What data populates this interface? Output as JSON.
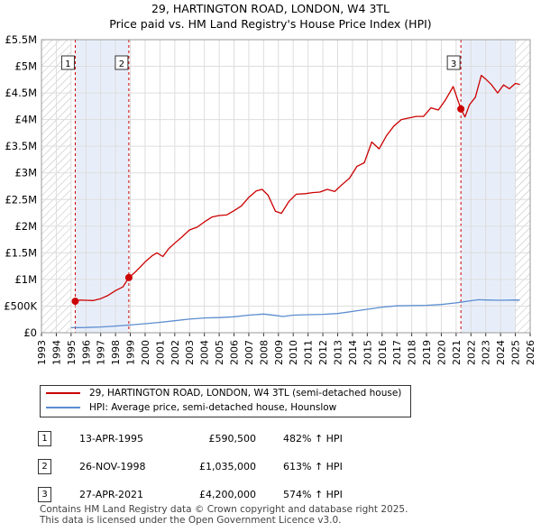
{
  "title_line1": "29, HARTINGTON ROAD, LONDON, W4 3TL",
  "title_line2": "Price paid vs. HM Land Registry's House Price Index (HPI)",
  "colors": {
    "property": "#cc0000",
    "hpi": "#5b8dd0",
    "sale_band": "#e8eef9",
    "hatch": "#bbbbbb",
    "grid": "#dddddd"
  },
  "chart_data": {
    "type": "line",
    "title": "Price paid vs. HM Land Registry's House Price Index (HPI)",
    "xlabel": "",
    "ylabel": "",
    "xlim": [
      1993,
      2026
    ],
    "ylim": [
      0,
      5500000
    ],
    "y_ticks": [
      {
        "value": 0,
        "label": "£0"
      },
      {
        "value": 500000,
        "label": "£500K"
      },
      {
        "value": 1000000,
        "label": "£1M"
      },
      {
        "value": 1500000,
        "label": "£1.5M"
      },
      {
        "value": 2000000,
        "label": "£2M"
      },
      {
        "value": 2500000,
        "label": "£2.5M"
      },
      {
        "value": 3000000,
        "label": "£3M"
      },
      {
        "value": 3500000,
        "label": "£3.5M"
      },
      {
        "value": 4000000,
        "label": "£4M"
      },
      {
        "value": 4500000,
        "label": "£4.5M"
      },
      {
        "value": 5000000,
        "label": "£5M"
      },
      {
        "value": 5500000,
        "label": "£5.5M"
      }
    ],
    "x_ticks": [
      "1993",
      "1994",
      "1995",
      "1996",
      "1997",
      "1998",
      "1999",
      "2000",
      "2001",
      "2002",
      "2003",
      "2004",
      "2005",
      "2006",
      "2007",
      "2008",
      "2009",
      "2010",
      "2011",
      "2012",
      "2013",
      "2014",
      "2015",
      "2016",
      "2017",
      "2018",
      "2019",
      "2020",
      "2021",
      "2022",
      "2023",
      "2024",
      "2025",
      "2026"
    ],
    "series": [
      {
        "name": "29, HARTINGTON ROAD, LONDON, W4 3TL (semi-detached house)",
        "points": [
          [
            1995.28,
            590500
          ],
          [
            1995.6,
            612000
          ],
          [
            1996.0,
            610000
          ],
          [
            1996.5,
            605000
          ],
          [
            1997.0,
            640000
          ],
          [
            1997.5,
            700000
          ],
          [
            1998.0,
            790000
          ],
          [
            1998.5,
            860000
          ],
          [
            1998.9,
            1035000
          ],
          [
            1999.3,
            1130000
          ],
          [
            1999.7,
            1240000
          ],
          [
            2000.0,
            1330000
          ],
          [
            2000.5,
            1450000
          ],
          [
            2000.8,
            1500000
          ],
          [
            2001.2,
            1430000
          ],
          [
            2001.6,
            1580000
          ],
          [
            2002.0,
            1680000
          ],
          [
            2002.5,
            1800000
          ],
          [
            2003.0,
            1930000
          ],
          [
            2003.5,
            1980000
          ],
          [
            2004.0,
            2080000
          ],
          [
            2004.5,
            2170000
          ],
          [
            2005.0,
            2200000
          ],
          [
            2005.5,
            2210000
          ],
          [
            2006.0,
            2290000
          ],
          [
            2006.5,
            2380000
          ],
          [
            2007.0,
            2540000
          ],
          [
            2007.5,
            2660000
          ],
          [
            2007.9,
            2690000
          ],
          [
            2008.3,
            2580000
          ],
          [
            2008.8,
            2280000
          ],
          [
            2009.2,
            2240000
          ],
          [
            2009.7,
            2460000
          ],
          [
            2010.2,
            2600000
          ],
          [
            2010.8,
            2610000
          ],
          [
            2011.3,
            2630000
          ],
          [
            2011.8,
            2640000
          ],
          [
            2012.3,
            2690000
          ],
          [
            2012.8,
            2650000
          ],
          [
            2013.3,
            2780000
          ],
          [
            2013.8,
            2900000
          ],
          [
            2014.3,
            3120000
          ],
          [
            2014.8,
            3190000
          ],
          [
            2015.3,
            3580000
          ],
          [
            2015.8,
            3450000
          ],
          [
            2016.3,
            3700000
          ],
          [
            2016.8,
            3880000
          ],
          [
            2017.3,
            4000000
          ],
          [
            2017.8,
            4030000
          ],
          [
            2018.3,
            4060000
          ],
          [
            2018.8,
            4060000
          ],
          [
            2019.3,
            4220000
          ],
          [
            2019.8,
            4180000
          ],
          [
            2020.3,
            4380000
          ],
          [
            2020.8,
            4620000
          ],
          [
            2021.32,
            4200000
          ],
          [
            2021.6,
            4050000
          ],
          [
            2021.9,
            4280000
          ],
          [
            2022.3,
            4420000
          ],
          [
            2022.7,
            4830000
          ],
          [
            2023.0,
            4760000
          ],
          [
            2023.4,
            4650000
          ],
          [
            2023.8,
            4500000
          ],
          [
            2024.2,
            4650000
          ],
          [
            2024.6,
            4580000
          ],
          [
            2025.0,
            4680000
          ],
          [
            2025.3,
            4660000
          ]
        ]
      },
      {
        "name": "HPI: Average price, semi-detached house, Hounslow",
        "points": [
          [
            1995.0,
            95000
          ],
          [
            1996.0,
            98000
          ],
          [
            1997.0,
            108000
          ],
          [
            1998.0,
            125000
          ],
          [
            1999.0,
            145000
          ],
          [
            2000.0,
            170000
          ],
          [
            2001.0,
            195000
          ],
          [
            2002.0,
            225000
          ],
          [
            2003.0,
            255000
          ],
          [
            2004.0,
            278000
          ],
          [
            2005.0,
            285000
          ],
          [
            2006.0,
            300000
          ],
          [
            2007.0,
            330000
          ],
          [
            2008.0,
            350000
          ],
          [
            2008.8,
            325000
          ],
          [
            2009.3,
            305000
          ],
          [
            2010.0,
            330000
          ],
          [
            2011.0,
            338000
          ],
          [
            2012.0,
            345000
          ],
          [
            2013.0,
            360000
          ],
          [
            2014.0,
            400000
          ],
          [
            2015.0,
            440000
          ],
          [
            2016.0,
            480000
          ],
          [
            2017.0,
            505000
          ],
          [
            2018.0,
            510000
          ],
          [
            2019.0,
            515000
          ],
          [
            2020.0,
            530000
          ],
          [
            2021.0,
            560000
          ],
          [
            2022.0,
            600000
          ],
          [
            2022.5,
            620000
          ],
          [
            2023.0,
            615000
          ],
          [
            2024.0,
            610000
          ],
          [
            2025.0,
            615000
          ],
          [
            2025.3,
            612000
          ]
        ]
      }
    ],
    "sales": [
      {
        "num": "1",
        "x": 1995.28,
        "price": 590500
      },
      {
        "num": "2",
        "x": 1998.9,
        "price": 1035000
      },
      {
        "num": "3",
        "x": 2021.32,
        "price": 4200000
      }
    ],
    "hatch_ranges": [
      [
        1993,
        1995.0
      ],
      [
        2025.0,
        2026
      ]
    ],
    "shade_ranges": [
      [
        1995.28,
        1998.9
      ],
      [
        2021.32,
        2025.0
      ]
    ]
  },
  "legend": {
    "property": "29, HARTINGTON ROAD, LONDON, W4 3TL (semi-detached house)",
    "hpi": "HPI: Average price, semi-detached house, Hounslow"
  },
  "sales_table": [
    {
      "num": "1",
      "date": "13-APR-1995",
      "price": "£590,500",
      "hpi": "482% ↑ HPI"
    },
    {
      "num": "2",
      "date": "26-NOV-1998",
      "price": "£1,035,000",
      "hpi": "613% ↑ HPI"
    },
    {
      "num": "3",
      "date": "27-APR-2021",
      "price": "£4,200,000",
      "hpi": "574% ↑ HPI"
    }
  ],
  "footer_line1": "Contains HM Land Registry data © Crown copyright and database right 2025.",
  "footer_line2": "This data is licensed under the Open Government Licence v3.0."
}
